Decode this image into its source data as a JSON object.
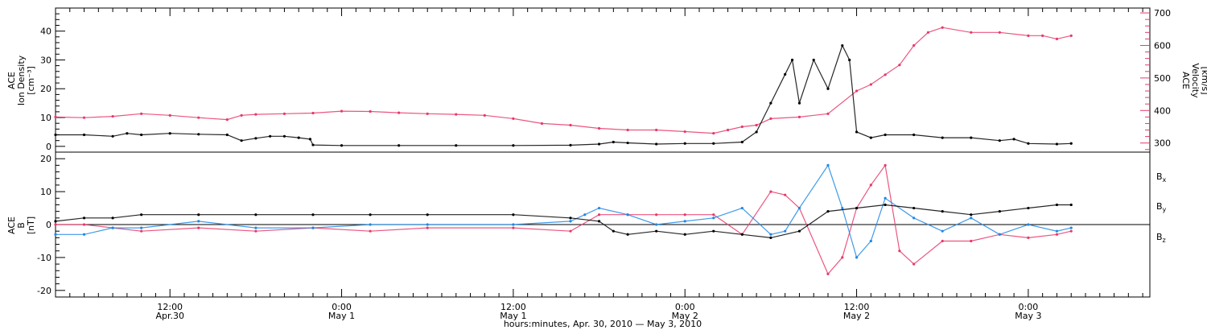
{
  "colors": {
    "black": "#000000",
    "blue": "#1f88e5",
    "red": "#e8386a",
    "frame": "#000000",
    "right_axis": "#e8386a"
  },
  "figure": {
    "x_axis_title": "hours:minutes, Apr. 30, 2010 — May  3, 2010",
    "x_ticks": [
      {
        "hour": 12,
        "time": "12:00",
        "date": "Apr.30"
      },
      {
        "hour": 24,
        "time": "0:00",
        "date": "May 1"
      },
      {
        "hour": 36,
        "time": "12:00",
        "date": "May 1"
      },
      {
        "hour": 48,
        "time": "0:00",
        "date": "May 2"
      },
      {
        "hour": 60,
        "time": "12:00",
        "date": "May 2"
      },
      {
        "hour": 72,
        "time": "0:00",
        "date": "May 3"
      }
    ],
    "x_range_hours": [
      4,
      80.5
    ]
  },
  "chart_data": [
    {
      "type": "scatter",
      "x_unit": "hours since Apr. 30, 2010 00:00",
      "left_axis": {
        "label_lines": [
          "ACE",
          "Ion Density",
          "[cm⁻³]"
        ],
        "ticks": [
          0,
          10,
          20,
          30,
          40
        ],
        "ylim": [
          -2,
          48
        ]
      },
      "right_axis": {
        "label_lines": [
          "ACE",
          "Velocity",
          "[km/s]"
        ],
        "ticks": [
          300,
          400,
          500,
          600,
          700
        ],
        "ylim": [
          272,
          715
        ]
      },
      "series": [
        {
          "color": "black",
          "axis": "left",
          "x": [
            4,
            6,
            8,
            9,
            10,
            12,
            14,
            16,
            17,
            18,
            19,
            20,
            21,
            21.8,
            22,
            24,
            28,
            32,
            36,
            40,
            42,
            43,
            44,
            46,
            48,
            50,
            52,
            53,
            54,
            55,
            55.5,
            56,
            57,
            58,
            59,
            59.5,
            60,
            61,
            62,
            64,
            66,
            68,
            70,
            71,
            72,
            74,
            75
          ],
          "y": [
            4,
            4,
            3.5,
            4.5,
            4,
            4.5,
            4.2,
            4,
            2,
            2.8,
            3.5,
            3.5,
            3,
            2.5,
            0.5,
            0.3,
            0.3,
            0.3,
            0.3,
            0.4,
            0.8,
            1.5,
            1.2,
            0.8,
            1,
            1,
            1.5,
            5,
            15,
            25,
            30,
            15,
            30,
            20,
            35,
            30,
            5,
            3,
            4,
            4,
            3,
            3,
            2,
            2.5,
            1,
            0.8,
            1
          ]
        },
        {
          "color": "red",
          "axis": "right",
          "x": [
            4,
            6,
            8,
            10,
            12,
            14,
            16,
            17,
            18,
            20,
            22,
            24,
            26,
            28,
            30,
            32,
            34,
            36,
            38,
            40,
            42,
            44,
            46,
            48,
            50,
            51,
            52,
            53,
            54,
            56,
            58,
            60,
            61,
            62,
            63,
            64,
            65,
            66,
            68,
            70,
            72,
            73,
            74,
            75
          ],
          "y": [
            380,
            378,
            382,
            390,
            385,
            378,
            372,
            385,
            388,
            390,
            392,
            398,
            397,
            393,
            390,
            388,
            385,
            375,
            360,
            355,
            345,
            340,
            340,
            335,
            330,
            340,
            350,
            355,
            375,
            380,
            390,
            460,
            480,
            510,
            540,
            600,
            640,
            655,
            640,
            640,
            630,
            630,
            620,
            630
          ]
        }
      ]
    },
    {
      "type": "scatter",
      "x_unit": "hours since Apr. 30, 2010 00:00",
      "left_axis": {
        "label_lines": [
          "ACE",
          "B",
          "[nT]"
        ],
        "ticks": [
          -20,
          -10,
          0,
          10,
          20
        ],
        "ylim": [
          -22,
          22
        ]
      },
      "legend": [
        "Bx",
        "By",
        "Bz"
      ],
      "legend_placement": "right",
      "series": [
        {
          "name": "Bx",
          "color": "black",
          "x": [
            4,
            6,
            8,
            10,
            14,
            18,
            22,
            26,
            30,
            36,
            40,
            42,
            43,
            44,
            46,
            48,
            50,
            52,
            54,
            56,
            58,
            60,
            62,
            64,
            66,
            68,
            70,
            72,
            74,
            75
          ],
          "y": [
            1,
            2,
            2,
            3,
            3,
            3,
            3,
            3,
            3,
            3,
            2,
            1,
            -2,
            -3,
            -2,
            -3,
            -2,
            -3,
            -4,
            -2,
            4,
            5,
            6,
            5,
            4,
            3,
            4,
            5,
            6,
            6
          ]
        },
        {
          "name": "By",
          "color": "blue",
          "x": [
            4,
            6,
            8,
            10,
            14,
            18,
            22,
            26,
            30,
            36,
            40,
            41,
            42,
            44,
            46,
            48,
            50,
            52,
            54,
            55,
            56,
            58,
            59,
            60,
            61,
            62,
            64,
            66,
            68,
            70,
            72,
            74,
            75
          ],
          "y": [
            -3,
            -3,
            -1,
            -1,
            1,
            -1,
            -1,
            0,
            0,
            0,
            1,
            3,
            5,
            3,
            0,
            1,
            2,
            5,
            -3,
            -2,
            5,
            18,
            5,
            -10,
            -5,
            8,
            2,
            -2,
            2,
            -3,
            0,
            -2,
            -1
          ]
        },
        {
          "name": "Bz",
          "color": "red",
          "x": [
            4,
            6,
            8,
            10,
            14,
            18,
            22,
            26,
            30,
            36,
            40,
            42,
            44,
            46,
            48,
            50,
            52,
            54,
            55,
            56,
            58,
            59,
            60,
            61,
            62,
            63,
            64,
            66,
            68,
            70,
            72,
            74,
            75
          ],
          "y": [
            0,
            0,
            -1,
            -2,
            -1,
            -2,
            -1,
            -2,
            -1,
            -1,
            -2,
            3,
            3,
            3,
            3,
            3,
            -3,
            10,
            9,
            5,
            -15,
            -10,
            5,
            12,
            18,
            -8,
            -12,
            -5,
            -5,
            -3,
            -4,
            -3,
            -2
          ]
        }
      ]
    }
  ]
}
